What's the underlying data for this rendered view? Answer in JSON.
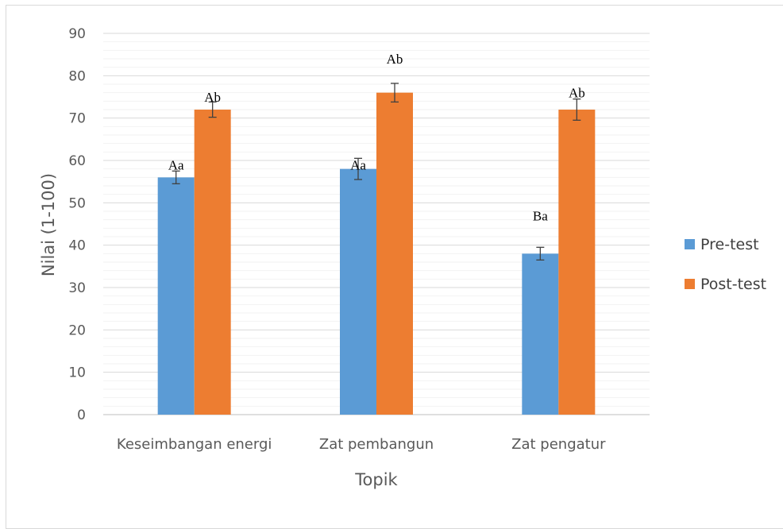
{
  "chart_data": {
    "type": "bar",
    "title": "",
    "xlabel": "Topik",
    "ylabel": "Nilai (1-100)",
    "ylim": [
      0,
      90
    ],
    "yticks": [
      0,
      10,
      20,
      30,
      40,
      50,
      60,
      70,
      80,
      90
    ],
    "minor_grid_step": 2,
    "grid": true,
    "legend_position": "right",
    "categories": [
      "Keseimbangan energi",
      "Zat pembangun",
      "Zat pengatur"
    ],
    "series": [
      {
        "name": "Pre-test",
        "color": "#5b9bd5",
        "values": [
          56,
          58,
          38
        ],
        "errors": [
          1.5,
          2.5,
          1.5
        ],
        "labels": [
          "Aa",
          "Aa",
          "Ba"
        ]
      },
      {
        "name": "Post-test",
        "color": "#ed7d31",
        "values": [
          72,
          76,
          72
        ],
        "errors": [
          1.8,
          2.2,
          2.5
        ],
        "labels": [
          "Ab",
          "Ab",
          "Ab"
        ]
      }
    ],
    "label_values": [
      [
        59,
        59,
        47
      ],
      [
        75,
        84,
        76
      ]
    ]
  }
}
